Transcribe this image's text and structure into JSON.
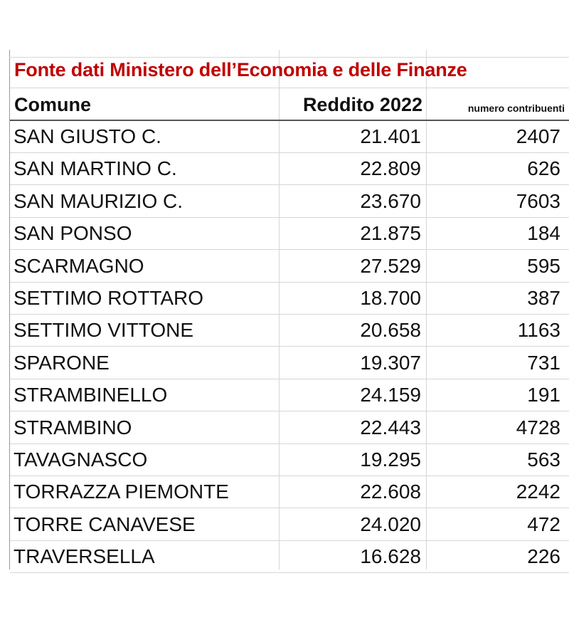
{
  "title": "Fonte dati Ministero dell’Economia e delle Finanze",
  "headers": {
    "comune": "Comune",
    "reddito": "Reddito 2022",
    "numero": "numero contribuenti"
  },
  "rows": [
    {
      "comune": "SAN GIUSTO C.",
      "reddito": "21.401",
      "numero": "2407"
    },
    {
      "comune": "SAN MARTINO C.",
      "reddito": "22.809",
      "numero": "626"
    },
    {
      "comune": "SAN MAURIZIO C.",
      "reddito": "23.670",
      "numero": "7603"
    },
    {
      "comune": "SAN PONSO",
      "reddito": "21.875",
      "numero": "184"
    },
    {
      "comune": "SCARMAGNO",
      "reddito": "27.529",
      "numero": "595"
    },
    {
      "comune": "SETTIMO ROTTARO",
      "reddito": "18.700",
      "numero": "387"
    },
    {
      "comune": "SETTIMO VITTONE",
      "reddito": "20.658",
      "numero": "1163"
    },
    {
      "comune": "SPARONE",
      "reddito": "19.307",
      "numero": "731"
    },
    {
      "comune": "STRAMBINELLO",
      "reddito": "24.159",
      "numero": "191"
    },
    {
      "comune": "STRAMBINO",
      "reddito": "22.443",
      "numero": "4728"
    },
    {
      "comune": "TAVAGNASCO",
      "reddito": "19.295",
      "numero": "563"
    },
    {
      "comune": "TORRAZZA PIEMONTE",
      "reddito": "22.608",
      "numero": "2242"
    },
    {
      "comune": "TORRE CANAVESE",
      "reddito": "24.020",
      "numero": "472"
    },
    {
      "comune": "TRAVERSELLA",
      "reddito": "16.628",
      "numero": "226"
    }
  ],
  "colors": {
    "title": "#c00000",
    "text": "#111111",
    "gridline": "#d6d6d6"
  }
}
